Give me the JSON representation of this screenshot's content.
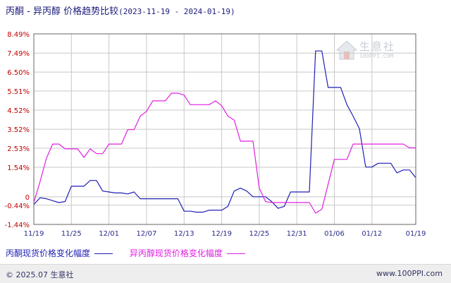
{
  "header": {
    "title": "丙酮 - 异丙醇 价格趋势比较",
    "date_range": "(2023-11-19 - 2024-01-19)"
  },
  "logo": {
    "text_cn": "生意社",
    "text_en": "100PPI.COM"
  },
  "footer": {
    "copyright": "© 2025.07 生意社",
    "site": "www.100PPI.com"
  },
  "colors": {
    "acetone": "#1f1fb4",
    "ipa": "#e020e0",
    "grid": "#c8c8c8",
    "axis_text": "#c00000",
    "date_text": "#2a2a8a"
  },
  "chart_data": {
    "type": "line",
    "title": "丙酮 - 异丙醇 价格趋势比较",
    "xlabel": "",
    "ylabel": "",
    "y_tick_labels": [
      "8.49%",
      "7.49%",
      "6.50%",
      "5.51%",
      "4.52%",
      "3.52%",
      "2.53%",
      "1.54%",
      "0",
      "-0.44%",
      "-1.44%"
    ],
    "y_tick_values": [
      8.49,
      7.49,
      6.5,
      5.51,
      4.52,
      3.52,
      2.53,
      1.54,
      0,
      -0.44,
      -1.44
    ],
    "ylim": [
      -1.44,
      8.49
    ],
    "x_tick_labels": [
      "11/19",
      "11/25",
      "12/01",
      "12/07",
      "12/13",
      "12/19",
      "12/25",
      "12/31",
      "01/06",
      "01/12",
      "01/19"
    ],
    "x_tick_days": [
      0,
      6,
      12,
      18,
      24,
      30,
      36,
      42,
      48,
      54,
      61
    ],
    "x_range_days": [
      0,
      61
    ],
    "grid": true,
    "legend_position": "bottom-left",
    "series": [
      {
        "name": "丙酮现货价格变化幅度",
        "points": [
          [
            0,
            -0.4
          ],
          [
            1,
            -0.05
          ],
          [
            2,
            -0.1
          ],
          [
            3,
            -0.2
          ],
          [
            4,
            -0.3
          ],
          [
            5,
            -0.25
          ],
          [
            6,
            0.55
          ],
          [
            7,
            0.55
          ],
          [
            8,
            0.55
          ],
          [
            9,
            0.85
          ],
          [
            10,
            0.85
          ],
          [
            11,
            0.3
          ],
          [
            12,
            0.25
          ],
          [
            13,
            0.2
          ],
          [
            14,
            0.2
          ],
          [
            15,
            0.15
          ],
          [
            16,
            0.25
          ],
          [
            17,
            -0.1
          ],
          [
            18,
            -0.1
          ],
          [
            19,
            -0.1
          ],
          [
            20,
            -0.1
          ],
          [
            21,
            -0.1
          ],
          [
            22,
            -0.1
          ],
          [
            23,
            -0.1
          ],
          [
            24,
            -0.75
          ],
          [
            25,
            -0.75
          ],
          [
            26,
            -0.8
          ],
          [
            27,
            -0.8
          ],
          [
            28,
            -0.7
          ],
          [
            29,
            -0.7
          ],
          [
            30,
            -0.7
          ],
          [
            31,
            -0.5
          ],
          [
            32,
            0.3
          ],
          [
            33,
            0.45
          ],
          [
            34,
            0.3
          ],
          [
            35,
            0.0
          ],
          [
            36,
            0.0
          ],
          [
            37,
            0.0
          ],
          [
            38,
            -0.25
          ],
          [
            39,
            -0.6
          ],
          [
            40,
            -0.5
          ],
          [
            41,
            0.25
          ],
          [
            42,
            0.25
          ],
          [
            43,
            0.25
          ],
          [
            44,
            0.25
          ],
          [
            45,
            7.6
          ],
          [
            46,
            7.6
          ],
          [
            47,
            5.7
          ],
          [
            48,
            5.7
          ],
          [
            49,
            5.7
          ],
          [
            50,
            4.8
          ],
          [
            51,
            4.2
          ],
          [
            52,
            3.55
          ],
          [
            53,
            1.55
          ],
          [
            54,
            1.55
          ],
          [
            55,
            1.75
          ],
          [
            56,
            1.75
          ],
          [
            57,
            1.75
          ],
          [
            58,
            1.25
          ],
          [
            59,
            1.4
          ],
          [
            60,
            1.4
          ],
          [
            61,
            1.0
          ]
        ]
      },
      {
        "name": "异丙醇现货价格变化幅度",
        "points": [
          [
            0,
            -0.3
          ],
          [
            1,
            0.8
          ],
          [
            2,
            2.0
          ],
          [
            3,
            2.75
          ],
          [
            4,
            2.75
          ],
          [
            5,
            2.5
          ],
          [
            6,
            2.5
          ],
          [
            7,
            2.5
          ],
          [
            8,
            2.05
          ],
          [
            9,
            2.5
          ],
          [
            10,
            2.25
          ],
          [
            11,
            2.25
          ],
          [
            12,
            2.75
          ],
          [
            13,
            2.75
          ],
          [
            14,
            2.75
          ],
          [
            15,
            3.5
          ],
          [
            16,
            3.5
          ],
          [
            17,
            4.2
          ],
          [
            18,
            4.45
          ],
          [
            19,
            5.0
          ],
          [
            20,
            5.0
          ],
          [
            21,
            5.0
          ],
          [
            22,
            5.4
          ],
          [
            23,
            5.4
          ],
          [
            24,
            5.3
          ],
          [
            25,
            4.8
          ],
          [
            26,
            4.8
          ],
          [
            27,
            4.8
          ],
          [
            28,
            4.8
          ],
          [
            29,
            5.0
          ],
          [
            30,
            4.75
          ],
          [
            31,
            4.2
          ],
          [
            32,
            4.0
          ],
          [
            33,
            2.9
          ],
          [
            34,
            2.9
          ],
          [
            35,
            2.9
          ],
          [
            36,
            0.45
          ],
          [
            37,
            -0.25
          ],
          [
            38,
            -0.3
          ],
          [
            39,
            -0.3
          ],
          [
            40,
            -0.3
          ],
          [
            41,
            -0.3
          ],
          [
            42,
            -0.3
          ],
          [
            43,
            -0.3
          ],
          [
            44,
            -0.3
          ],
          [
            45,
            -0.85
          ],
          [
            46,
            -0.65
          ],
          [
            47,
            0.65
          ],
          [
            48,
            1.95
          ],
          [
            49,
            1.95
          ],
          [
            50,
            1.95
          ],
          [
            51,
            2.75
          ],
          [
            52,
            2.75
          ],
          [
            53,
            2.75
          ],
          [
            54,
            2.75
          ],
          [
            55,
            2.75
          ],
          [
            56,
            2.75
          ],
          [
            57,
            2.75
          ],
          [
            58,
            2.75
          ],
          [
            59,
            2.75
          ],
          [
            60,
            2.55
          ],
          [
            61,
            2.55
          ]
        ]
      }
    ]
  }
}
